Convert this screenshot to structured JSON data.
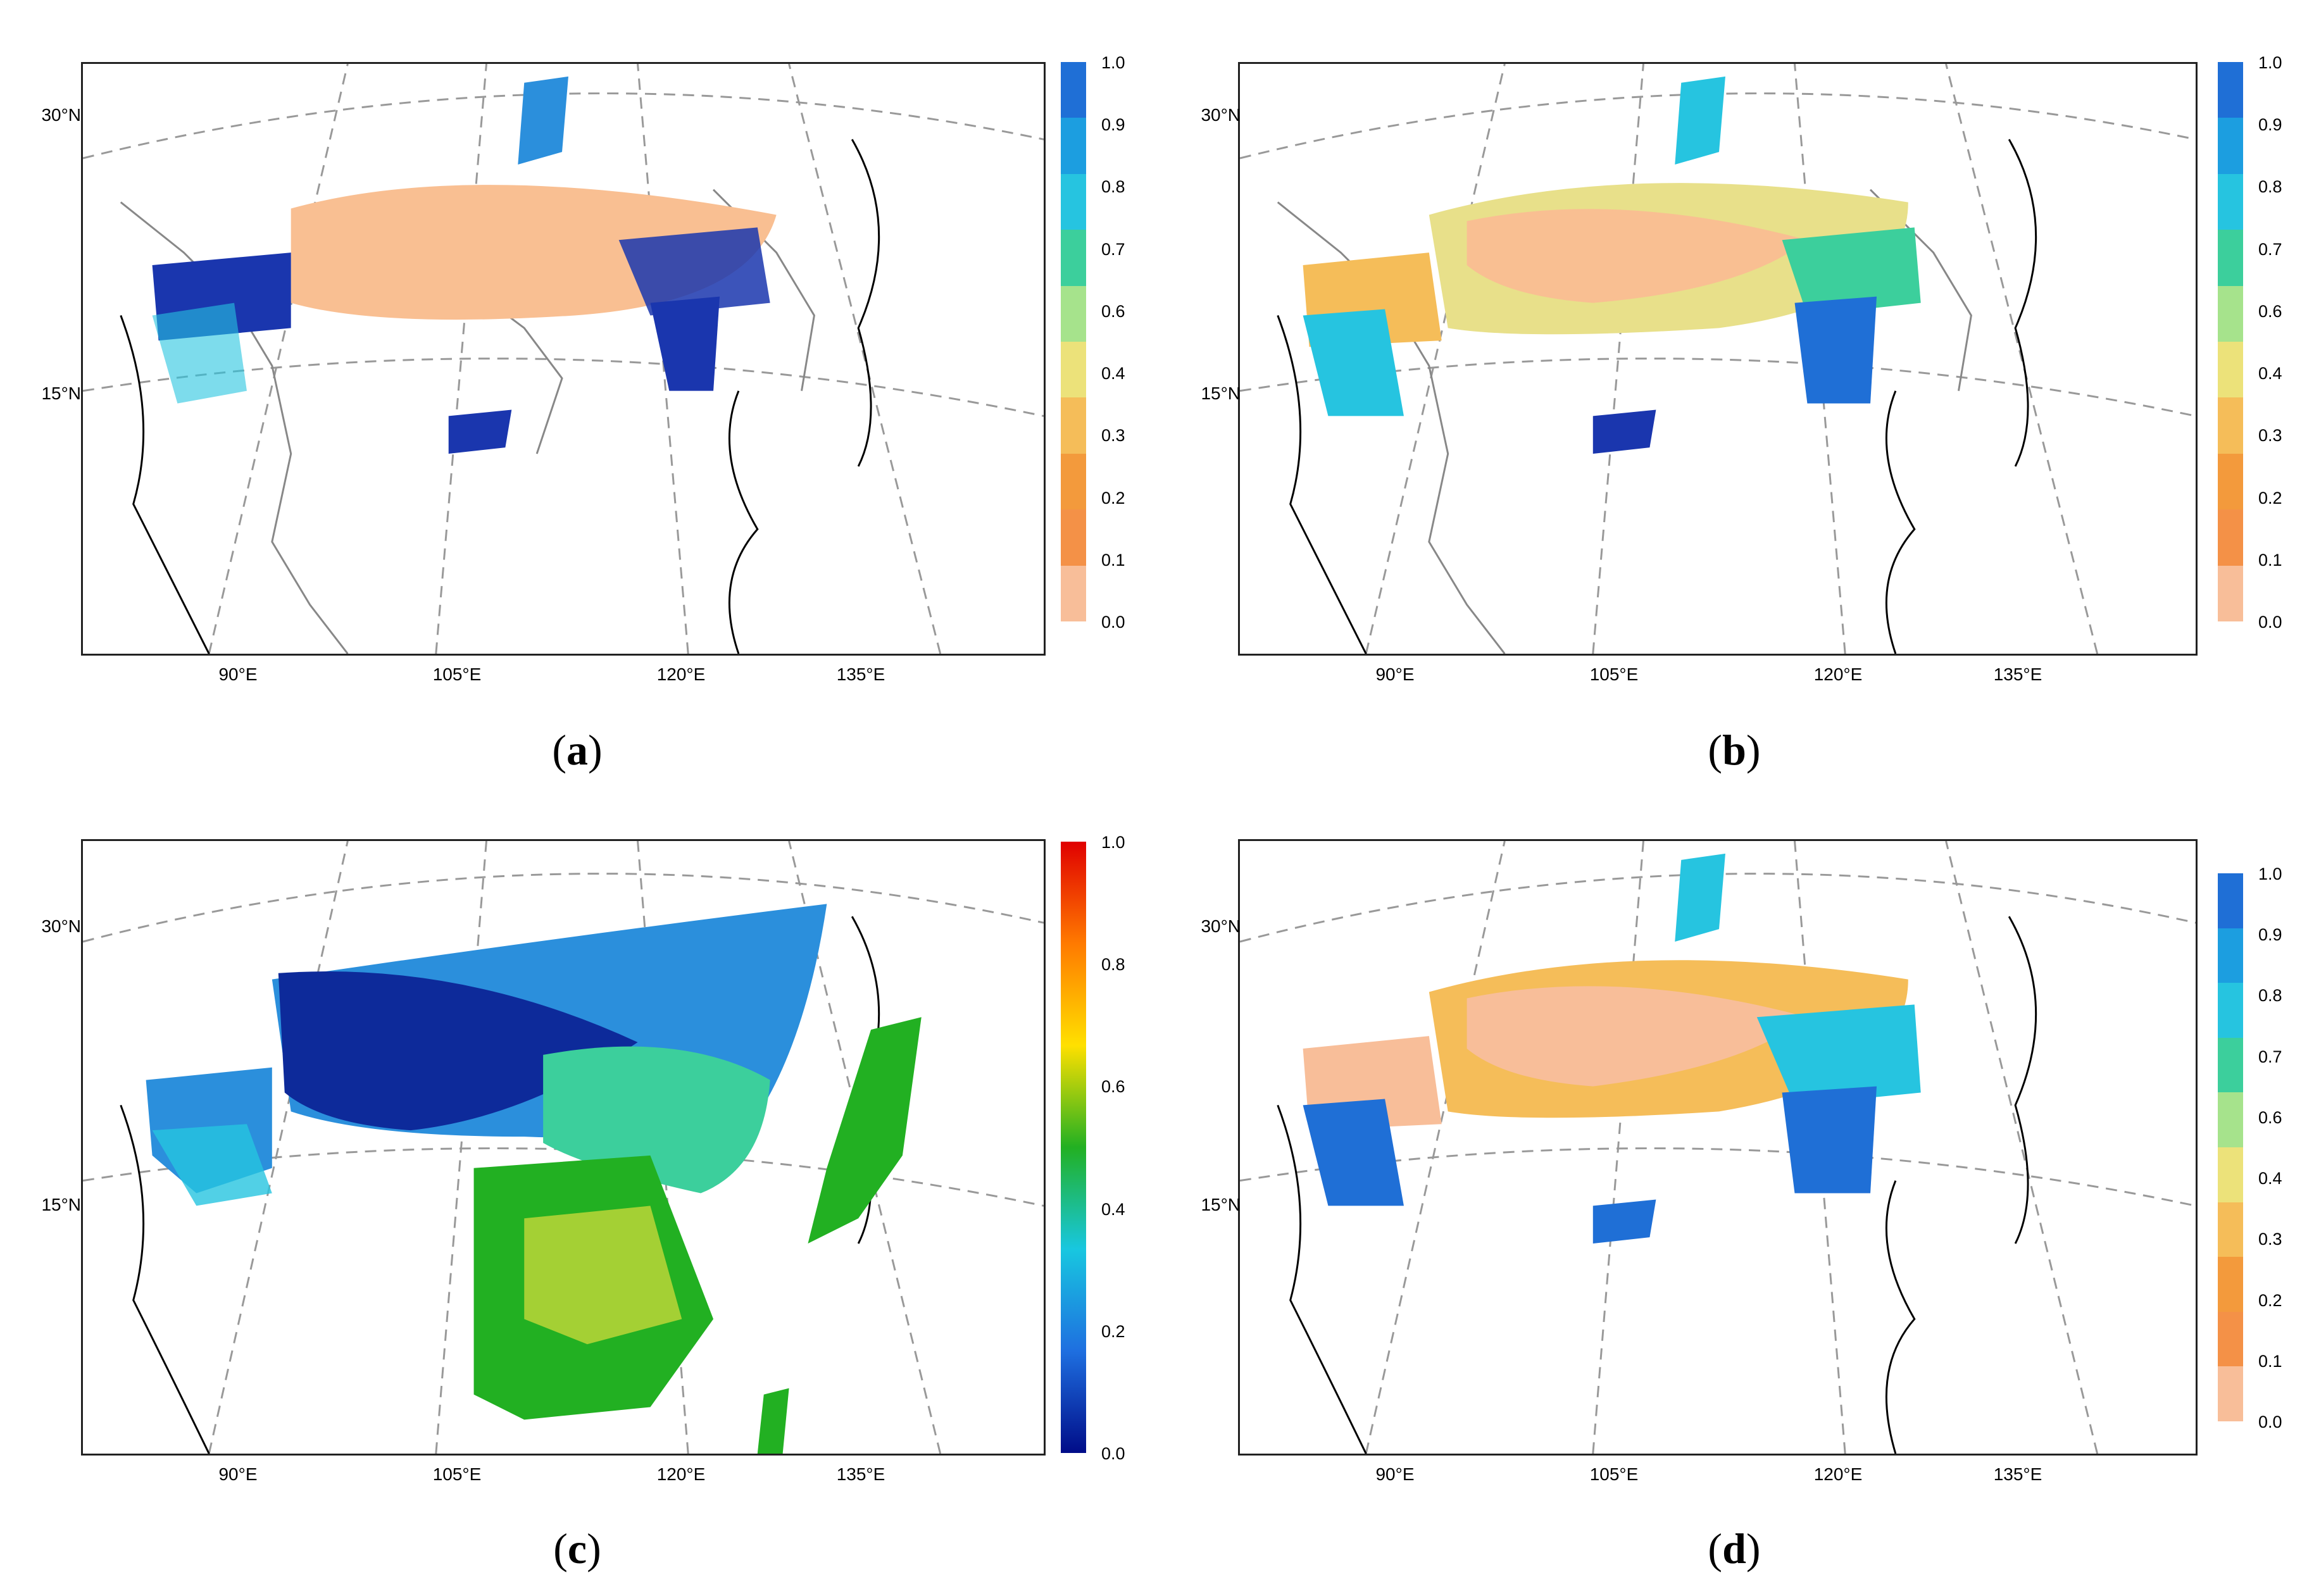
{
  "panels": [
    {
      "id": "a",
      "label_open": "(",
      "label_letter": "a",
      "label_close": ")",
      "lat_labels": [
        "30°N",
        "15°N"
      ],
      "lon_labels": [
        "90°E",
        "105°E",
        "120°E",
        "135°E"
      ],
      "colorbar_type": "discrete",
      "colorbar_ticks": [
        "1.0",
        "0.9",
        "0.8",
        "0.7",
        "0.6",
        "0.4",
        "0.3",
        "0.2",
        "0.1",
        "0.0"
      ],
      "dominant_fill": "#f9bf92"
    },
    {
      "id": "b",
      "label_open": "(",
      "label_letter": "b",
      "label_close": ")",
      "lat_labels": [
        "30°N",
        "15°N"
      ],
      "lon_labels": [
        "90°E",
        "105°E",
        "120°E",
        "135°E"
      ],
      "colorbar_type": "discrete",
      "colorbar_ticks": [
        "1.0",
        "0.9",
        "0.8",
        "0.7",
        "0.6",
        "0.4",
        "0.3",
        "0.2",
        "0.1",
        "0.0"
      ],
      "dominant_fill": "#e8e08a"
    },
    {
      "id": "c",
      "label_open": "(",
      "label_letter": "c",
      "label_close": ")",
      "lat_labels": [
        "30°N",
        "15°N"
      ],
      "lon_labels": [
        "90°E",
        "105°E",
        "120°E",
        "135°E"
      ],
      "colorbar_type": "continuous",
      "colorbar_ticks": [
        "1.0",
        "0.8",
        "0.6",
        "0.4",
        "0.2",
        "0.0"
      ],
      "dominant_fill": "#1a3fb0"
    },
    {
      "id": "d",
      "label_open": "(",
      "label_letter": "d",
      "label_close": ")",
      "lat_labels": [
        "30°N",
        "15°N"
      ],
      "lon_labels": [
        "90°E",
        "105°E",
        "120°E",
        "135°E"
      ],
      "colorbar_type": "discrete",
      "colorbar_ticks": [
        "1.0",
        "0.9",
        "0.8",
        "0.7",
        "0.6",
        "0.4",
        "0.3",
        "0.2",
        "0.1",
        "0.0"
      ],
      "dominant_fill": "#f9bf92"
    }
  ],
  "colors": {
    "discrete_scale": [
      "#1f6fd6",
      "#1c9ee0",
      "#26c4e0",
      "#3ccf9c",
      "#a6e38c",
      "#ece27a",
      "#f5bd59",
      "#f39a3c",
      "#f49147",
      "#f8be99"
    ],
    "continuous_scale": [
      "#e00000",
      "#ff7a00",
      "#ffe000",
      "#22b022",
      "#18c7e0",
      "#1e6fe0",
      "#000c88"
    ],
    "map_lines": "#777777",
    "coast_lines": "#000000"
  }
}
